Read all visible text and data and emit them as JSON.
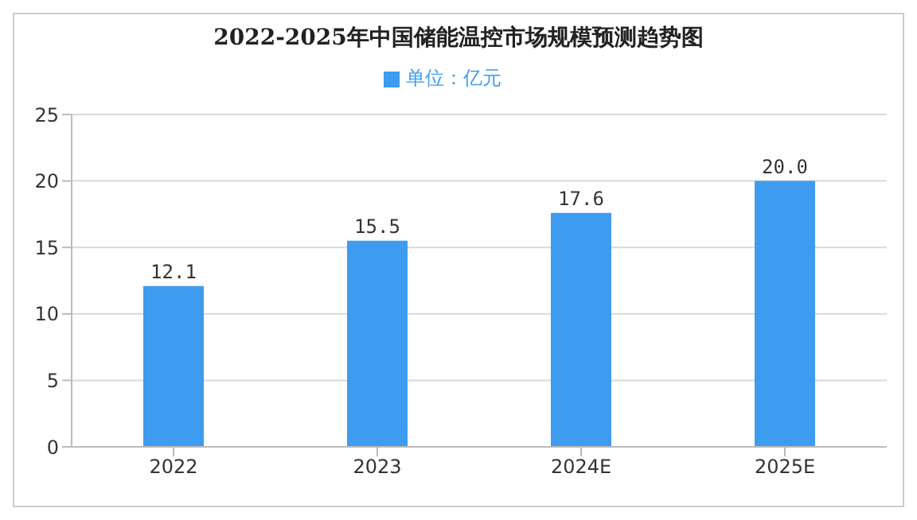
{
  "chart_data": {
    "type": "bar",
    "title": "2022-2025年中国储能温控市场规模预测趋势图",
    "categories": [
      "2022",
      "2023",
      "2024E",
      "2025E"
    ],
    "series": [
      {
        "name": "单位：亿元",
        "color": "#3d9cf0",
        "values": [
          12.1,
          15.5,
          17.6,
          20.0
        ]
      }
    ],
    "value_labels": [
      "12.1",
      "15.5",
      "17.6",
      "20.0"
    ],
    "ylim": [
      0,
      25
    ],
    "yticks": [
      0,
      5,
      10,
      15,
      20,
      25
    ],
    "grid": "y",
    "legend": "top"
  }
}
